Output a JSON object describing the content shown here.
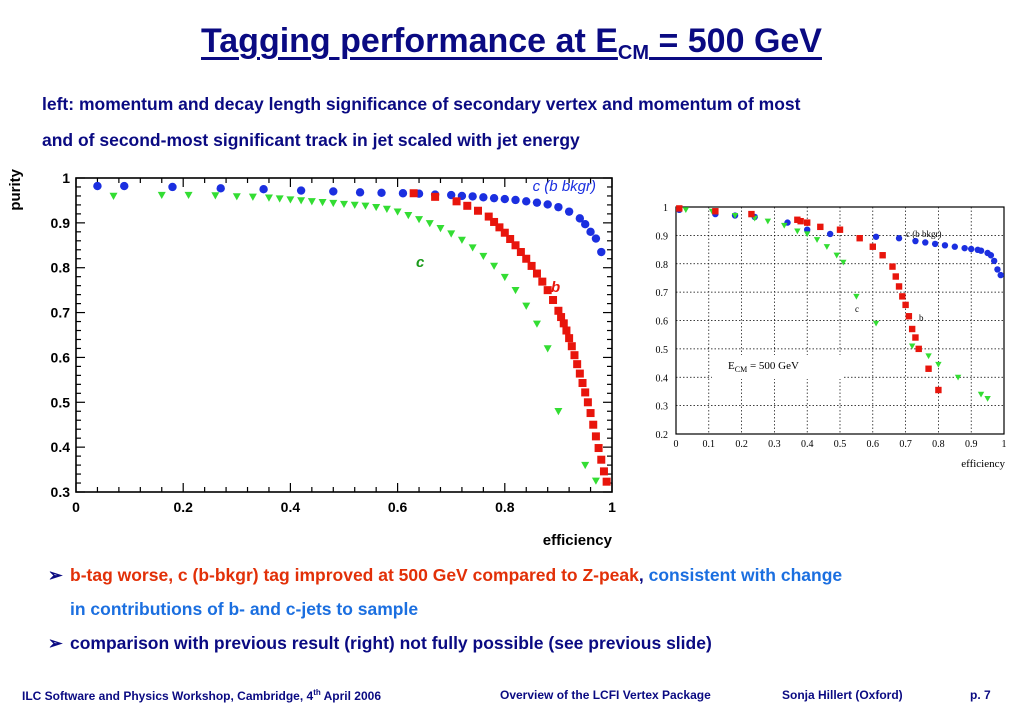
{
  "slide": {
    "title_main": "Tagging performance at E",
    "title_sub": "CM",
    "title_tail": " = 500 GeV",
    "subtitle_line1": "left: momentum and decay length significance of secondary vertex and momentum of most",
    "subtitle_line2": "and of second-most significant track in jet scaled with jet energy",
    "bullet1_red": "b-tag worse, c (b-bkgr) tag improved at 500 GeV compared to Z-peak",
    "bullet1_comma": ",",
    "bullet1_blue": " consistent with change",
    "bullet1_cont": "in contributions of b- and c-jets to sample",
    "bullet2": "comparison with previous result (right) not fully possible (see previous slide)",
    "bullet_glyph": "➢"
  },
  "footer": {
    "left_pre": "ILC Software and Physics Workshop, Cambridge, 4",
    "left_sup": "th",
    "left_post": " April 2006",
    "center": "Overview of the LCFI Vertex Package",
    "author": "Sonja Hillert (Oxford)",
    "page": "p. 7"
  },
  "colors": {
    "title": "#0a0a82",
    "red": "#e23008",
    "blue_text": "#1b6fe0",
    "series_b": "#e8150c",
    "series_c": "#33dd33",
    "series_cb": "#1b2fe0"
  },
  "chart_data": [
    {
      "type": "scatter",
      "xlabel": "efficiency",
      "ylabel": "purity",
      "xlim": [
        0,
        1
      ],
      "ylim": [
        0.3,
        1
      ],
      "x_ticks": [
        "0",
        "0.2",
        "0.4",
        "0.6",
        "0.8",
        "1"
      ],
      "y_ticks": [
        "0.3",
        "0.4",
        "0.5",
        "0.6",
        "0.7",
        "0.8",
        "0.9",
        "1"
      ],
      "grid": false,
      "series": [
        {
          "name": "c (b bkgr)",
          "marker": "circle",
          "color": "#1b2fe0",
          "points": [
            [
              0.04,
              0.982
            ],
            [
              0.09,
              0.982
            ],
            [
              0.18,
              0.98
            ],
            [
              0.27,
              0.977
            ],
            [
              0.35,
              0.975
            ],
            [
              0.42,
              0.972
            ],
            [
              0.48,
              0.97
            ],
            [
              0.53,
              0.968
            ],
            [
              0.57,
              0.967
            ],
            [
              0.61,
              0.966
            ],
            [
              0.64,
              0.965
            ],
            [
              0.67,
              0.963
            ],
            [
              0.7,
              0.962
            ],
            [
              0.72,
              0.96
            ],
            [
              0.74,
              0.959
            ],
            [
              0.76,
              0.957
            ],
            [
              0.78,
              0.955
            ],
            [
              0.8,
              0.953
            ],
            [
              0.82,
              0.951
            ],
            [
              0.84,
              0.948
            ],
            [
              0.86,
              0.945
            ],
            [
              0.88,
              0.941
            ],
            [
              0.9,
              0.935
            ],
            [
              0.92,
              0.925
            ],
            [
              0.94,
              0.91
            ],
            [
              0.95,
              0.897
            ],
            [
              0.96,
              0.88
            ],
            [
              0.97,
              0.865
            ],
            [
              0.98,
              0.835
            ]
          ]
        },
        {
          "name": "c",
          "marker": "triangle",
          "color": "#33dd33",
          "points": [
            [
              0.07,
              0.96
            ],
            [
              0.16,
              0.962
            ],
            [
              0.21,
              0.962
            ],
            [
              0.26,
              0.961
            ],
            [
              0.3,
              0.959
            ],
            [
              0.33,
              0.958
            ],
            [
              0.36,
              0.956
            ],
            [
              0.38,
              0.954
            ],
            [
              0.4,
              0.952
            ],
            [
              0.42,
              0.95
            ],
            [
              0.44,
              0.948
            ],
            [
              0.46,
              0.946
            ],
            [
              0.48,
              0.944
            ],
            [
              0.5,
              0.942
            ],
            [
              0.52,
              0.94
            ],
            [
              0.54,
              0.938
            ],
            [
              0.56,
              0.935
            ],
            [
              0.58,
              0.931
            ],
            [
              0.6,
              0.925
            ],
            [
              0.62,
              0.917
            ],
            [
              0.64,
              0.908
            ],
            [
              0.66,
              0.899
            ],
            [
              0.68,
              0.888
            ],
            [
              0.7,
              0.876
            ],
            [
              0.72,
              0.862
            ],
            [
              0.74,
              0.845
            ],
            [
              0.76,
              0.826
            ],
            [
              0.78,
              0.804
            ],
            [
              0.8,
              0.779
            ],
            [
              0.82,
              0.75
            ],
            [
              0.84,
              0.715
            ],
            [
              0.86,
              0.675
            ],
            [
              0.88,
              0.62
            ],
            [
              0.9,
              0.48
            ],
            [
              0.95,
              0.36
            ],
            [
              0.97,
              0.325
            ]
          ]
        },
        {
          "name": "b",
          "marker": "square",
          "color": "#e8150c",
          "points": [
            [
              0.63,
              0.966
            ],
            [
              0.67,
              0.958
            ],
            [
              0.71,
              0.948
            ],
            [
              0.73,
              0.938
            ],
            [
              0.75,
              0.927
            ],
            [
              0.77,
              0.914
            ],
            [
              0.78,
              0.902
            ],
            [
              0.79,
              0.89
            ],
            [
              0.8,
              0.878
            ],
            [
              0.81,
              0.864
            ],
            [
              0.82,
              0.85
            ],
            [
              0.83,
              0.835
            ],
            [
              0.84,
              0.82
            ],
            [
              0.85,
              0.804
            ],
            [
              0.86,
              0.787
            ],
            [
              0.87,
              0.769
            ],
            [
              0.88,
              0.75
            ],
            [
              0.89,
              0.728
            ],
            [
              0.9,
              0.704
            ],
            [
              0.905,
              0.69
            ],
            [
              0.91,
              0.676
            ],
            [
              0.915,
              0.66
            ],
            [
              0.92,
              0.643
            ],
            [
              0.925,
              0.625
            ],
            [
              0.93,
              0.605
            ],
            [
              0.935,
              0.585
            ],
            [
              0.94,
              0.564
            ],
            [
              0.945,
              0.543
            ],
            [
              0.95,
              0.522
            ],
            [
              0.955,
              0.5
            ],
            [
              0.96,
              0.476
            ],
            [
              0.965,
              0.45
            ],
            [
              0.97,
              0.424
            ],
            [
              0.975,
              0.398
            ],
            [
              0.98,
              0.372
            ],
            [
              0.985,
              0.346
            ],
            [
              0.99,
              0.323
            ]
          ]
        }
      ],
      "annotations": [
        {
          "text": "c (b bkgr)",
          "series": "c (b bkgr)"
        },
        {
          "text": "c",
          "series": "c"
        },
        {
          "text": "b",
          "series": "b"
        }
      ]
    },
    {
      "type": "scatter",
      "xlabel": "efficiency",
      "ylabel": "",
      "xlim": [
        0,
        1
      ],
      "ylim": [
        0.2,
        1
      ],
      "x_ticks": [
        "0",
        "0.1",
        "0.2",
        "0.3",
        "0.4",
        "0.5",
        "0.6",
        "0.7",
        "0.8",
        "0.9",
        "1"
      ],
      "y_ticks": [
        "0.2",
        "0.3",
        "0.4",
        "0.5",
        "0.6",
        "0.7",
        "0.8",
        "0.9",
        "1"
      ],
      "grid": true,
      "legend_text_main": "E",
      "legend_text_sub": "CM",
      "legend_text_tail": " = 500 GeV",
      "series": [
        {
          "name": "c (b bkgr)",
          "marker": "circle",
          "color": "#1b2fe0",
          "points": [
            [
              0.01,
              0.99
            ],
            [
              0.12,
              0.975
            ],
            [
              0.18,
              0.97
            ],
            [
              0.24,
              0.965
            ],
            [
              0.34,
              0.945
            ],
            [
              0.4,
              0.92
            ],
            [
              0.47,
              0.905
            ],
            [
              0.61,
              0.895
            ],
            [
              0.68,
              0.89
            ],
            [
              0.73,
              0.88
            ],
            [
              0.76,
              0.875
            ],
            [
              0.79,
              0.87
            ],
            [
              0.82,
              0.865
            ],
            [
              0.85,
              0.86
            ],
            [
              0.88,
              0.855
            ],
            [
              0.9,
              0.852
            ],
            [
              0.92,
              0.849
            ],
            [
              0.93,
              0.846
            ],
            [
              0.95,
              0.838
            ],
            [
              0.96,
              0.83
            ],
            [
              0.97,
              0.81
            ],
            [
              0.98,
              0.78
            ],
            [
              0.99,
              0.76
            ]
          ]
        },
        {
          "name": "c",
          "marker": "triangle",
          "color": "#33dd33",
          "points": [
            [
              0.03,
              0.99
            ],
            [
              0.11,
              0.985
            ],
            [
              0.18,
              0.97
            ],
            [
              0.24,
              0.96
            ],
            [
              0.28,
              0.95
            ],
            [
              0.33,
              0.935
            ],
            [
              0.37,
              0.915
            ],
            [
              0.4,
              0.905
            ],
            [
              0.43,
              0.885
            ],
            [
              0.46,
              0.86
            ],
            [
              0.49,
              0.83
            ],
            [
              0.51,
              0.805
            ],
            [
              0.55,
              0.685
            ],
            [
              0.61,
              0.59
            ],
            [
              0.72,
              0.51
            ],
            [
              0.77,
              0.475
            ],
            [
              0.8,
              0.445
            ],
            [
              0.86,
              0.4
            ],
            [
              0.93,
              0.34
            ],
            [
              0.95,
              0.325
            ]
          ]
        },
        {
          "name": "b",
          "marker": "square",
          "color": "#e8150c",
          "points": [
            [
              0.01,
              0.995
            ],
            [
              0.12,
              0.985
            ],
            [
              0.23,
              0.975
            ],
            [
              0.37,
              0.955
            ],
            [
              0.38,
              0.95
            ],
            [
              0.4,
              0.945
            ],
            [
              0.44,
              0.93
            ],
            [
              0.5,
              0.92
            ],
            [
              0.56,
              0.89
            ],
            [
              0.6,
              0.86
            ],
            [
              0.63,
              0.83
            ],
            [
              0.66,
              0.79
            ],
            [
              0.67,
              0.755
            ],
            [
              0.68,
              0.72
            ],
            [
              0.69,
              0.685
            ],
            [
              0.7,
              0.655
            ],
            [
              0.71,
              0.615
            ],
            [
              0.72,
              0.57
            ],
            [
              0.73,
              0.54
            ],
            [
              0.74,
              0.5
            ],
            [
              0.77,
              0.43
            ],
            [
              0.8,
              0.355
            ]
          ]
        }
      ],
      "annotations": [
        {
          "text": "c (b bkgr)",
          "series": "c (b bkgr)"
        },
        {
          "text": "c",
          "series": "c"
        },
        {
          "text": "b",
          "series": "b"
        }
      ]
    }
  ]
}
